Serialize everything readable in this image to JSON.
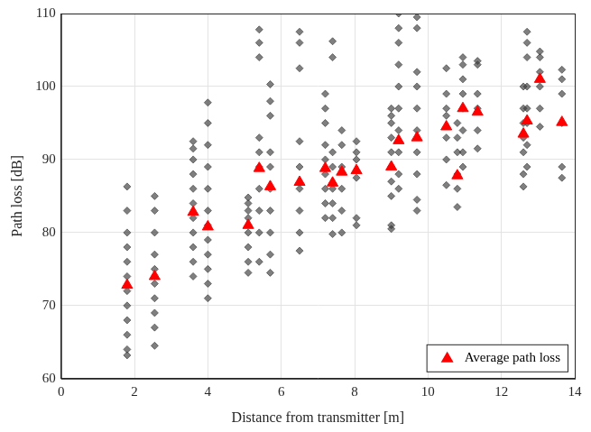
{
  "chart_data": {
    "type": "scatter",
    "x_label": "Distance from transmitter [m]",
    "y_label": "Path loss [dB]",
    "xlim": [
      0,
      14
    ],
    "xticks": [
      0,
      2,
      4,
      6,
      8,
      10,
      12,
      14
    ],
    "ylim": [
      60,
      110
    ],
    "yticks": [
      60,
      70,
      80,
      90,
      100,
      110
    ],
    "grid": true,
    "legend": "lower right",
    "series": [
      {
        "color": "#3a3a3a",
        "marker": "diamond",
        "x": [
          1.8,
          1.8,
          1.8,
          1.8,
          1.8,
          1.8,
          1.8,
          1.8,
          1.8,
          1.8,
          1.8,
          1.8,
          2.55,
          2.55,
          2.55,
          2.55,
          2.55,
          2.55,
          2.55,
          2.55,
          2.55,
          2.55,
          3.6,
          3.6,
          3.6,
          3.6,
          3.6,
          3.6,
          3.6,
          3.6,
          3.6,
          3.6,
          3.6,
          4.0,
          4.0,
          4.0,
          4.0,
          4.0,
          4.0,
          4.0,
          4.0,
          4.0,
          4.0,
          4.0,
          4.0,
          5.1,
          5.1,
          5.1,
          5.1,
          5.1,
          5.1,
          5.1,
          5.1,
          5.4,
          5.4,
          5.4,
          5.4,
          5.4,
          5.4,
          5.4,
          5.4,
          5.4,
          5.4,
          5.7,
          5.7,
          5.7,
          5.7,
          5.7,
          5.7,
          5.7,
          5.7,
          5.7,
          5.7,
          6.5,
          6.5,
          6.5,
          6.5,
          6.5,
          6.5,
          6.5,
          6.5,
          6.5,
          7.2,
          7.2,
          7.2,
          7.2,
          7.2,
          7.2,
          7.2,
          7.2,
          7.2,
          7.4,
          7.4,
          7.4,
          7.4,
          7.4,
          7.4,
          7.4,
          7.4,
          7.65,
          7.65,
          7.65,
          7.65,
          7.65,
          7.65,
          8.05,
          8.05,
          8.05,
          8.05,
          8.05,
          8.05,
          9.0,
          9.0,
          9.0,
          9.0,
          9.0,
          9.0,
          9.0,
          9.0,
          9.0,
          9.0,
          9.2,
          9.2,
          9.2,
          9.2,
          9.2,
          9.2,
          9.2,
          9.2,
          9.2,
          9.2,
          9.7,
          9.7,
          9.7,
          9.7,
          9.7,
          9.7,
          9.7,
          9.7,
          9.7,
          9.7,
          10.5,
          10.5,
          10.5,
          10.5,
          10.5,
          10.5,
          10.5,
          10.8,
          10.8,
          10.8,
          10.8,
          10.8,
          10.8,
          10.95,
          10.95,
          10.95,
          10.95,
          10.95,
          10.95,
          10.95,
          10.95,
          11.35,
          11.35,
          11.35,
          11.35,
          11.35,
          11.35,
          12.6,
          12.6,
          12.6,
          12.6,
          12.6,
          12.6,
          12.6,
          12.7,
          12.7,
          12.7,
          12.7,
          12.7,
          12.7,
          12.7,
          12.7,
          13.05,
          13.05,
          13.05,
          13.05,
          13.05,
          13.05,
          13.65,
          13.65,
          13.65,
          13.65,
          13.65,
          13.65
        ],
        "values": [
          63.2,
          64,
          66,
          68,
          70,
          72,
          74,
          76,
          78,
          80,
          83,
          86.3,
          64.5,
          67,
          69,
          71,
          73,
          75,
          77,
          80,
          83,
          85,
          74,
          76,
          78,
          80,
          82,
          84,
          86,
          88,
          90,
          91.5,
          92.5,
          71,
          73,
          75,
          77,
          79,
          81,
          83,
          86,
          89,
          92,
          95,
          97.8,
          74.5,
          76,
          78,
          80,
          82,
          83,
          84,
          84.8,
          76,
          80,
          83,
          86,
          89,
          91,
          93,
          104,
          106,
          107.8,
          74.5,
          77,
          80,
          83,
          86,
          89,
          91,
          96,
          98,
          100.3,
          77.5,
          80,
          83,
          86,
          89,
          92.5,
          102.5,
          106,
          107.5,
          82,
          84,
          86,
          88,
          90,
          92,
          95,
          97,
          99,
          79.8,
          82,
          84,
          86,
          89,
          91,
          104,
          106.2,
          80,
          83,
          86,
          89,
          92,
          94,
          81,
          82,
          87.5,
          90,
          91,
          92.5,
          80.5,
          81,
          85,
          87,
          89,
          91,
          93,
          95,
          96,
          97,
          86,
          88,
          91,
          94,
          97,
          100,
          103,
          106,
          108,
          110,
          83,
          84.5,
          88,
          91,
          94,
          97,
          100,
          102,
          108,
          109.5,
          86.5,
          90,
          93,
          96,
          97,
          99,
          102.5,
          83.5,
          86,
          88,
          91,
          93,
          95,
          89,
          91,
          94,
          97,
          99,
          101,
          103,
          104,
          91.5,
          94,
          97,
          99,
          103,
          103.5,
          86.3,
          88,
          91,
          93,
          95,
          97,
          100,
          89,
          92,
          95,
          97,
          100,
          104,
          106,
          107.5,
          94.5,
          97,
          100,
          102,
          104,
          104.8,
          87.5,
          89,
          95,
          99,
          101,
          102.3
        ]
      },
      {
        "name": "Average path loss",
        "color": "#ff0000",
        "marker": "triangle",
        "x": [
          1.8,
          2.55,
          3.6,
          4.0,
          5.1,
          5.4,
          5.7,
          6.5,
          7.2,
          7.4,
          7.65,
          8.05,
          9.0,
          9.2,
          9.7,
          10.5,
          10.8,
          10.95,
          11.35,
          12.6,
          12.7,
          13.05,
          13.65
        ],
        "values": [
          72.8,
          74,
          82.8,
          80.8,
          81,
          88.8,
          86.3,
          86.9,
          88.8,
          86.8,
          88.3,
          88.5,
          89,
          92.6,
          93,
          94.5,
          87.8,
          97,
          96.5,
          93.5,
          95.3,
          101,
          95.1
        ]
      }
    ]
  }
}
